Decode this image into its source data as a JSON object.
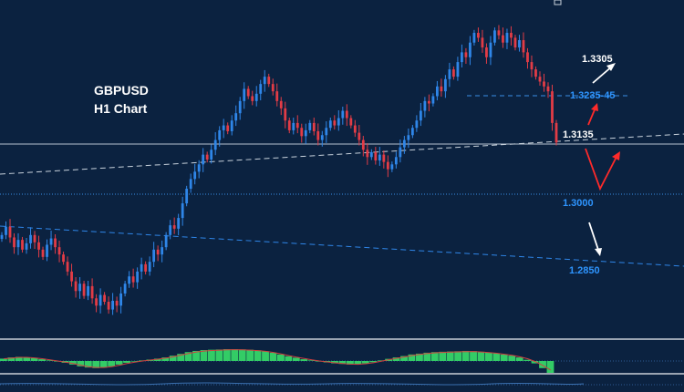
{
  "title_line1": "GBPUSD",
  "title_line2": "H1 Chart",
  "colors": {
    "background": "#0b2240",
    "bull": "#2f86e8",
    "bear": "#e23c46",
    "blue_label": "#2e95ff",
    "white_label": "#ffffff",
    "histogram": "#33cc66",
    "red_arrow": "#ff2a2a"
  },
  "chart_data": {
    "type": "candlestick",
    "symbol": "GBPUSD",
    "timeframe": "H1",
    "y_range": [
      1.274,
      1.338
    ],
    "levels": [
      {
        "price": "1.3305",
        "value": 1.3305,
        "color": "white"
      },
      {
        "price": "1.3235-45",
        "value": 1.324,
        "color": "blue",
        "line": "dashed-short"
      },
      {
        "price": "1.3135",
        "value": 1.3135,
        "color": "white",
        "line": "horizontal-solid"
      },
      {
        "price": "1.3000",
        "value": 1.3,
        "color": "blue",
        "line": "dotted"
      },
      {
        "price": "1.2850",
        "value": 1.285,
        "color": "blue",
        "line": "sloped-dashed"
      }
    ],
    "closes": [
      1.2935,
      1.2952,
      1.293,
      1.291,
      1.2925,
      1.2905,
      1.2918,
      1.2935,
      1.292,
      1.2905,
      1.289,
      1.2915,
      1.2928,
      1.291,
      1.2895,
      1.288,
      1.286,
      1.284,
      1.282,
      1.2835,
      1.281,
      1.283,
      1.2805,
      1.279,
      1.2812,
      1.2798,
      1.2782,
      1.28,
      1.279,
      1.2815,
      1.2835,
      1.285,
      1.2838,
      1.286,
      1.2875,
      1.286,
      1.288,
      1.2905,
      1.2895,
      1.291,
      1.2935,
      1.2955,
      1.2948,
      1.297,
      1.3,
      1.303,
      1.305,
      1.3065,
      1.308,
      1.31,
      1.309,
      1.311,
      1.313,
      1.315,
      1.316,
      1.3148,
      1.317,
      1.3185,
      1.321,
      1.3235,
      1.322,
      1.321,
      1.3225,
      1.3245,
      1.326,
      1.3245,
      1.323,
      1.321,
      1.3195,
      1.317,
      1.315,
      1.3165,
      1.3155,
      1.3138,
      1.315,
      1.3165,
      1.3148,
      1.313,
      1.314,
      1.3155,
      1.317,
      1.316,
      1.3175,
      1.319,
      1.3175,
      1.316,
      1.3145,
      1.313,
      1.311,
      1.3095,
      1.3105,
      1.3088,
      1.31,
      1.3085,
      1.307,
      1.308,
      1.3095,
      1.3115,
      1.313,
      1.314,
      1.3155,
      1.317,
      1.319,
      1.321,
      1.3205,
      1.322,
      1.324,
      1.323,
      1.3255,
      1.3275,
      1.326,
      1.329,
      1.331,
      1.33,
      1.333,
      1.335,
      1.334,
      1.332,
      1.33,
      1.333,
      1.3355,
      1.3345,
      1.333,
      1.335,
      1.334,
      1.332,
      1.3335,
      1.331,
      1.329,
      1.3275,
      1.326,
      1.325,
      1.324,
      1.323,
      1.3165,
      1.3125
    ],
    "macd_histogram": [
      0.2,
      0.3,
      0.35,
      0.3,
      0.25,
      0.15,
      0.05,
      -0.05,
      -0.15,
      -0.3,
      -0.45,
      -0.55,
      -0.6,
      -0.55,
      -0.45,
      -0.3,
      -0.15,
      -0.05,
      0.05,
      0.12,
      0.2,
      0.3,
      0.45,
      0.6,
      0.75,
      0.85,
      0.92,
      0.95,
      0.97,
      1.0,
      1.0,
      0.98,
      0.95,
      0.9,
      0.82,
      0.7,
      0.55,
      0.4,
      0.28,
      0.15,
      0.05,
      -0.05,
      -0.12,
      -0.2,
      -0.25,
      -0.3,
      -0.28,
      -0.2,
      -0.1,
      0.05,
      0.18,
      0.3,
      0.42,
      0.55,
      0.62,
      0.7,
      0.75,
      0.78,
      0.8,
      0.82,
      0.85,
      0.83,
      0.78,
      0.72,
      0.65,
      0.55,
      0.45,
      0.3,
      0.1,
      -0.2,
      -0.6,
      -1.0
    ]
  }
}
